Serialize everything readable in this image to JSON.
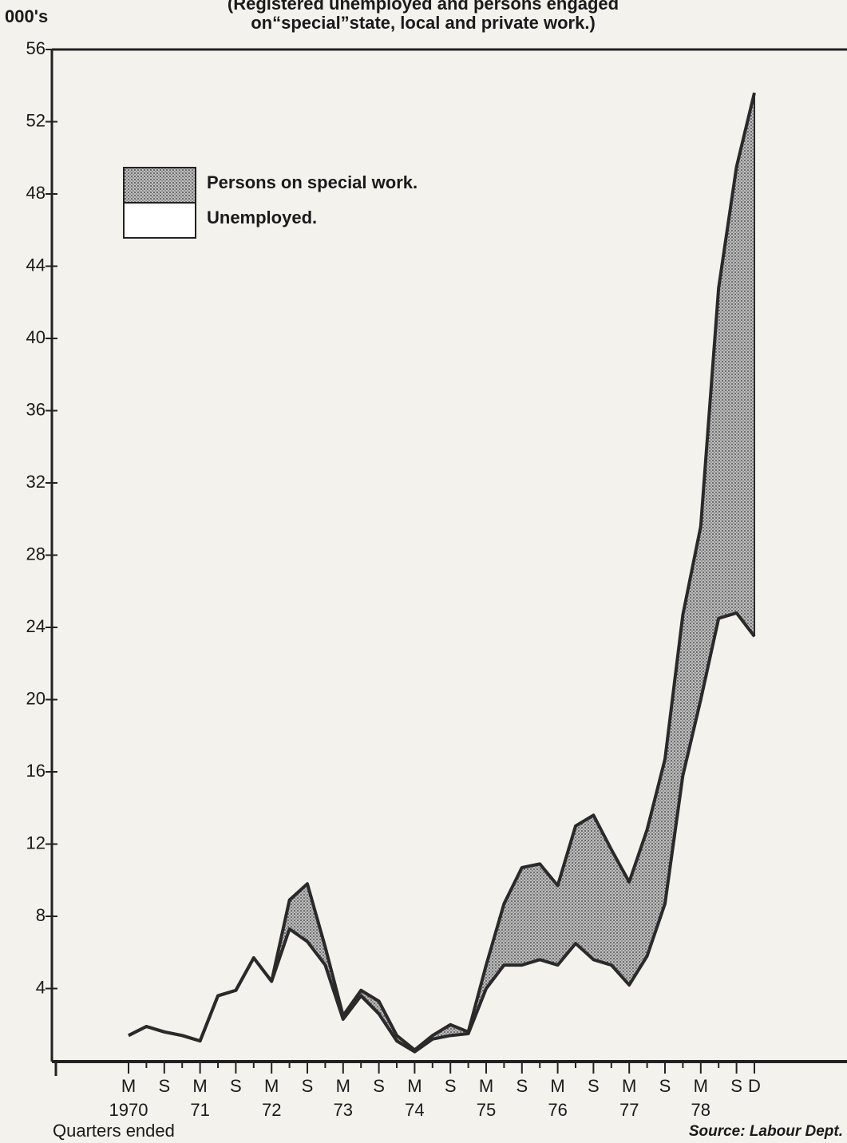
{
  "chart_data": {
    "type": "stacked_area",
    "title": [
      "(Registered unemployed and persons engaged",
      "on“special”state, local and private work.)"
    ],
    "y_axis_label": "000's",
    "x_axis_label": "Quarters ended",
    "source": "Source: Labour Dept.",
    "categories": [
      "M",
      null,
      "S",
      null,
      "M",
      null,
      "S",
      null,
      "M",
      null,
      "S",
      null,
      "M",
      null,
      "S",
      null,
      "M",
      null,
      "S",
      null,
      "M",
      null,
      "S",
      null,
      "M",
      null,
      "S",
      null,
      "M",
      null,
      "S",
      null,
      "M",
      null,
      "S",
      "D"
    ],
    "category_years": [
      "1970",
      null,
      null,
      null,
      "71",
      null,
      null,
      null,
      "72",
      null,
      null,
      null,
      "73",
      null,
      null,
      null,
      "74",
      null,
      null,
      null,
      "75",
      null,
      null,
      null,
      "76",
      null,
      null,
      null,
      "77",
      null,
      null,
      null,
      "78",
      null,
      null,
      null
    ],
    "series": [
      {
        "name": "Unemployed.",
        "color": "#ffffff",
        "values": [
          1.4,
          1.9,
          1.6,
          1.4,
          1.1,
          3.6,
          3.9,
          5.7,
          4.4,
          7.3,
          6.6,
          5.3,
          2.3,
          3.6,
          2.6,
          1.1,
          0.5,
          1.2,
          1.4,
          1.5,
          4.0,
          5.3,
          5.3,
          5.6,
          5.3,
          6.5,
          5.6,
          5.3,
          4.2,
          5.8,
          8.7,
          15.8,
          20.0,
          24.5,
          24.8,
          23.5
        ]
      },
      {
        "name": "Persons on special work.",
        "color": "#9a9a9a",
        "values": [
          0,
          0,
          0,
          0,
          0,
          0,
          0,
          0,
          0,
          1.6,
          3.2,
          1.0,
          0.2,
          0.3,
          0.7,
          0.3,
          0.1,
          0.2,
          0.6,
          0.1,
          1.3,
          3.4,
          5.4,
          5.3,
          4.4,
          6.5,
          8.0,
          6.4,
          5.7,
          7.0,
          8.0,
          8.9,
          9.6,
          18.3,
          24.7,
          30.1
        ]
      }
    ],
    "ylim": [
      0,
      56
    ],
    "yticks": [
      4,
      8,
      12,
      16,
      20,
      24,
      28,
      32,
      36,
      40,
      44,
      48,
      52,
      56
    ],
    "legend": "upper left"
  }
}
